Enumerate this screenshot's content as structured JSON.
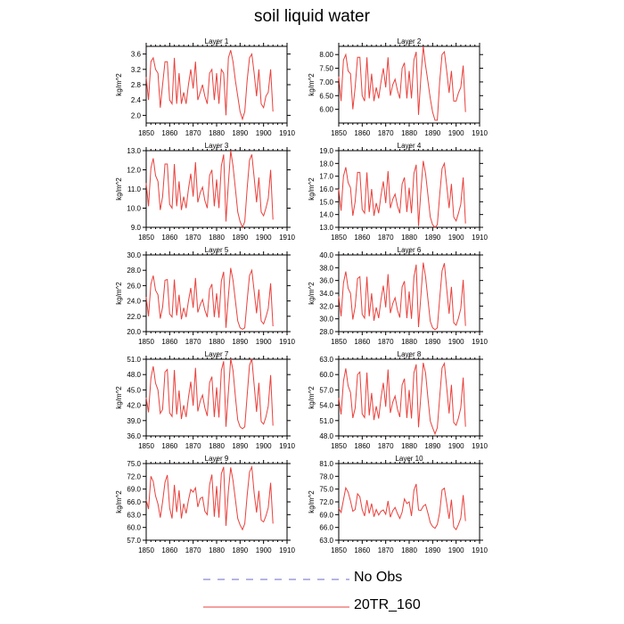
{
  "figure": {
    "title": "soil liquid water"
  },
  "legend": {
    "items": [
      {
        "label": "No Obs",
        "color": "#6a6ac8",
        "style": "dashed"
      },
      {
        "label": "20TR_160",
        "color": "#e8413c",
        "style": "solid"
      }
    ]
  },
  "chart_data": {
    "type": "line",
    "years": [
      1850,
      1851,
      1852,
      1853,
      1854,
      1855,
      1856,
      1857,
      1858,
      1859,
      1860,
      1861,
      1862,
      1863,
      1864,
      1865,
      1866,
      1867,
      1868,
      1869,
      1870,
      1871,
      1872,
      1873,
      1874,
      1875,
      1876,
      1877,
      1878,
      1879,
      1880,
      1881,
      1882,
      1883,
      1884,
      1885,
      1886,
      1887,
      1888,
      1889,
      1890,
      1891,
      1892,
      1893,
      1894,
      1895,
      1896,
      1897,
      1898,
      1899,
      1900,
      1901,
      1902,
      1903,
      1904
    ],
    "line_color": "#e8413c",
    "xlim": [
      1850,
      1910
    ],
    "xticks": [
      1850,
      1860,
      1870,
      1880,
      1890,
      1900,
      1910
    ],
    "panels": [
      {
        "title": "Layer 1",
        "ylabel": "kg/m^2",
        "ylim": [
          1.8,
          3.8
        ],
        "yticks": [
          "2.0",
          "2.4",
          "2.8",
          "3.2",
          "3.6"
        ],
        "values": [
          3.0,
          2.4,
          3.4,
          3.5,
          3.2,
          3.1,
          2.2,
          2.8,
          3.4,
          3.4,
          2.4,
          2.3,
          3.5,
          2.3,
          3.1,
          2.3,
          2.6,
          2.3,
          2.8,
          3.2,
          2.7,
          3.4,
          2.4,
          2.6,
          2.8,
          2.5,
          2.3,
          3.1,
          3.2,
          2.4,
          3.1,
          2.3,
          3.2,
          3.1,
          2.0,
          3.5,
          3.7,
          3.4,
          2.9,
          2.5,
          2.1,
          1.9,
          2.1,
          2.9,
          3.5,
          3.6,
          3.1,
          2.5,
          3.2,
          2.3,
          2.2,
          2.5,
          2.6,
          3.2,
          2.1
        ]
      },
      {
        "title": "Layer 2",
        "ylabel": "kg/m^2",
        "ylim": [
          5.5,
          8.3
        ],
        "yticks": [
          "6.00",
          "6.50",
          "7.00",
          "7.50",
          "8.00"
        ],
        "values": [
          7.2,
          6.3,
          7.8,
          8.0,
          7.4,
          7.3,
          6.0,
          6.8,
          7.9,
          7.9,
          6.5,
          6.3,
          7.9,
          6.4,
          7.3,
          6.3,
          6.8,
          6.4,
          7.0,
          7.5,
          6.8,
          7.9,
          6.5,
          6.9,
          7.1,
          6.7,
          6.4,
          7.5,
          7.7,
          6.4,
          7.4,
          6.4,
          7.8,
          8.1,
          5.8,
          7.2,
          8.3,
          7.6,
          7.0,
          6.4,
          5.9,
          5.6,
          5.6,
          7.0,
          8.0,
          8.1,
          7.4,
          6.6,
          7.4,
          6.3,
          6.3,
          6.6,
          6.8,
          7.6,
          5.9
        ]
      },
      {
        "title": "Layer 3",
        "ylabel": "kg/m^2",
        "ylim": [
          9.0,
          13.0
        ],
        "yticks": [
          "9.0",
          "10.0",
          "11.0",
          "12.0",
          "13.0"
        ],
        "values": [
          11.3,
          10.1,
          12.1,
          12.6,
          11.7,
          11.4,
          9.9,
          10.6,
          12.3,
          12.3,
          10.2,
          10.0,
          12.3,
          10.1,
          11.4,
          9.9,
          10.6,
          10.0,
          11.0,
          11.8,
          10.6,
          12.4,
          10.3,
          10.8,
          11.1,
          10.4,
          10.0,
          11.7,
          12.0,
          10.1,
          11.5,
          10.0,
          12.2,
          12.8,
          9.3,
          11.3,
          13.0,
          12.2,
          11.0,
          9.8,
          9.3,
          9.0,
          9.3,
          11.0,
          12.5,
          12.8,
          11.6,
          10.3,
          11.6,
          9.8,
          9.6,
          10.0,
          10.5,
          12.0,
          9.4
        ]
      },
      {
        "title": "Layer 4",
        "ylabel": "kg/m^2",
        "ylim": [
          13.0,
          19.0
        ],
        "yticks": [
          "13.0",
          "14.0",
          "15.0",
          "16.0",
          "17.0",
          "18.0",
          "19.0"
        ],
        "values": [
          16.0,
          14.3,
          17.0,
          17.7,
          16.5,
          16.1,
          13.9,
          15.0,
          17.3,
          17.3,
          14.4,
          14.1,
          17.3,
          14.2,
          16.0,
          13.9,
          14.9,
          14.1,
          15.5,
          16.6,
          14.9,
          17.4,
          14.5,
          15.2,
          15.6,
          14.7,
          14.1,
          16.4,
          16.9,
          14.2,
          16.1,
          14.1,
          17.2,
          17.9,
          13.1,
          15.9,
          18.2,
          17.2,
          15.5,
          13.8,
          13.2,
          13.0,
          13.2,
          15.5,
          17.6,
          18.0,
          16.3,
          14.5,
          16.4,
          13.8,
          13.5,
          14.1,
          14.8,
          16.9,
          13.3
        ]
      },
      {
        "title": "Layer 5",
        "ylabel": "kg/m^2",
        "ylim": [
          20.0,
          30.0
        ],
        "yticks": [
          "20.0",
          "22.0",
          "24.0",
          "26.0",
          "28.0",
          "30.0"
        ],
        "values": [
          24.5,
          22.0,
          26.2,
          27.3,
          25.4,
          24.8,
          21.7,
          23.2,
          26.7,
          26.8,
          22.3,
          21.9,
          26.8,
          22.1,
          24.8,
          21.6,
          23.1,
          21.9,
          24.0,
          25.7,
          23.1,
          27.0,
          22.5,
          23.5,
          24.2,
          22.8,
          21.9,
          25.5,
          26.2,
          21.9,
          25.0,
          21.8,
          26.6,
          27.8,
          20.5,
          24.6,
          28.3,
          26.7,
          24.0,
          21.4,
          20.5,
          20.3,
          20.5,
          24.0,
          27.3,
          28.0,
          25.3,
          22.4,
          25.5,
          21.4,
          21.0,
          21.9,
          23.0,
          26.3,
          20.7
        ]
      },
      {
        "title": "Layer 6",
        "ylabel": "kg/m^2",
        "ylim": [
          28.0,
          40.0
        ],
        "yticks": [
          "28.0",
          "30.0",
          "32.0",
          "34.0",
          "36.0",
          "38.0",
          "40.0"
        ],
        "values": [
          33.5,
          30.4,
          35.6,
          37.4,
          34.8,
          34.0,
          29.9,
          31.9,
          36.3,
          36.6,
          30.7,
          30.1,
          36.6,
          30.4,
          34.0,
          29.7,
          31.8,
          30.1,
          33.0,
          35.2,
          31.8,
          37.0,
          30.9,
          32.4,
          33.3,
          31.4,
          30.2,
          35.0,
          35.9,
          30.1,
          34.3,
          30.0,
          36.5,
          38.5,
          28.7,
          33.7,
          38.8,
          36.6,
          33.0,
          29.6,
          28.6,
          28.3,
          28.6,
          33.1,
          37.5,
          38.7,
          34.7,
          30.8,
          35.0,
          29.4,
          29.0,
          30.1,
          31.6,
          36.1,
          28.9
        ]
      },
      {
        "title": "Layer 7",
        "ylabel": "kg/m^2",
        "ylim": [
          36.0,
          51.0
        ],
        "yticks": [
          "36.0",
          "39.0",
          "42.0",
          "45.0",
          "48.0",
          "51.0"
        ],
        "values": [
          43.5,
          40.6,
          47.3,
          49.6,
          46.3,
          45.0,
          40.4,
          41.2,
          48.5,
          49.0,
          40.5,
          39.8,
          48.9,
          40.2,
          44.9,
          39.3,
          42.0,
          39.7,
          43.5,
          46.6,
          41.9,
          49.3,
          40.8,
          42.8,
          44.0,
          41.5,
          39.9,
          46.4,
          47.6,
          39.7,
          45.5,
          39.6,
          48.8,
          50.6,
          37.8,
          44.6,
          51.1,
          48.8,
          43.6,
          39.1,
          37.8,
          37.4,
          37.8,
          43.8,
          49.8,
          51.1,
          46.0,
          40.7,
          46.4,
          38.8,
          38.3,
          39.7,
          41.8,
          47.9,
          38.0
        ]
      },
      {
        "title": "Layer 8",
        "ylabel": "kg/m^2",
        "ylim": [
          48.0,
          63.0
        ],
        "yticks": [
          "48.0",
          "51.0",
          "54.0",
          "57.0",
          "60.0",
          "63.0"
        ],
        "values": [
          55.4,
          52.2,
          58.7,
          61.2,
          57.8,
          56.5,
          51.5,
          53.4,
          60.0,
          60.5,
          52.3,
          51.6,
          60.4,
          52.0,
          56.4,
          51.1,
          53.8,
          51.4,
          55.4,
          58.4,
          53.7,
          61.0,
          52.5,
          54.6,
          55.8,
          53.3,
          51.7,
          58.0,
          59.2,
          51.5,
          57.0,
          51.4,
          60.3,
          62.0,
          49.7,
          56.1,
          62.3,
          60.3,
          55.3,
          50.9,
          49.6,
          48.4,
          49.6,
          55.5,
          61.3,
          62.2,
          57.5,
          52.4,
          58.0,
          50.6,
          50.1,
          51.5,
          53.5,
          59.4,
          49.8
        ]
      },
      {
        "title": "Layer 9",
        "ylabel": "kg/m^2",
        "ylim": [
          57.0,
          75.0
        ],
        "yticks": [
          "57.0",
          "60.0",
          "63.0",
          "66.0",
          "69.0",
          "72.0",
          "75.0"
        ],
        "values": [
          66.5,
          64.3,
          72.0,
          70.8,
          67.4,
          65.5,
          62.3,
          66.0,
          70.6,
          72.3,
          64.6,
          62.1,
          70.0,
          63.6,
          68.7,
          62.1,
          65.6,
          63.3,
          66.4,
          68.9,
          68.3,
          69.3,
          64.8,
          66.8,
          67.1,
          63.8,
          63.0,
          70.0,
          72.4,
          62.5,
          69.7,
          62.3,
          72.6,
          74.2,
          60.4,
          68.6,
          74.1,
          71.0,
          66.5,
          62.1,
          60.6,
          59.5,
          60.9,
          67.4,
          73.0,
          74.2,
          68.1,
          63.5,
          68.6,
          61.7,
          61.3,
          62.7,
          64.6,
          70.5,
          60.9
        ]
      },
      {
        "title": "Layer 10",
        "ylabel": "kg/m^2",
        "ylim": [
          63.0,
          81.0
        ],
        "yticks": [
          "63.0",
          "66.0",
          "69.0",
          "72.0",
          "75.0",
          "78.0",
          "81.0"
        ],
        "values": [
          70.5,
          69.5,
          72.5,
          75.3,
          74.3,
          72.2,
          69.8,
          70.2,
          73.9,
          73.2,
          70.2,
          68.7,
          72.4,
          69.3,
          71.6,
          68.5,
          70.2,
          68.9,
          69.8,
          70.1,
          69.1,
          72.2,
          68.4,
          69.9,
          70.7,
          69.3,
          68.1,
          69.6,
          72.7,
          71.6,
          72.0,
          68.7,
          74.7,
          76.2,
          70.1,
          70.0,
          71.0,
          71.4,
          69.3,
          67.1,
          66.2,
          65.8,
          66.7,
          69.5,
          74.8,
          75.2,
          71.7,
          68.0,
          72.5,
          66.1,
          65.5,
          66.7,
          68.2,
          73.6,
          67.5
        ]
      }
    ]
  }
}
